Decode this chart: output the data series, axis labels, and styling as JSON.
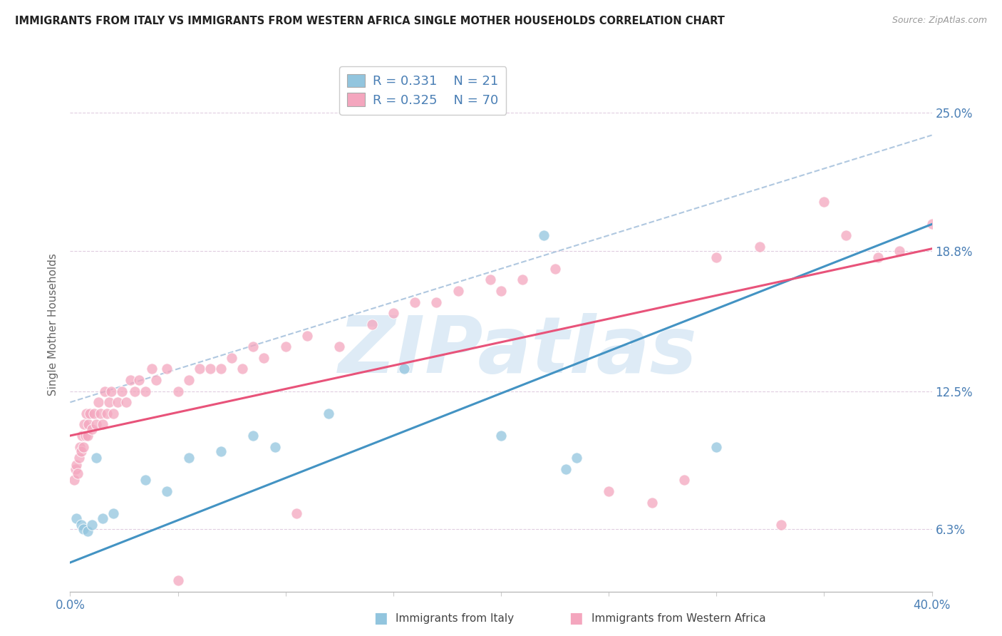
{
  "title": "IMMIGRANTS FROM ITALY VS IMMIGRANTS FROM WESTERN AFRICA SINGLE MOTHER HOUSEHOLDS CORRELATION CHART",
  "source": "Source: ZipAtlas.com",
  "ylabel": "Single Mother Households",
  "ytick_vals": [
    6.3,
    12.5,
    18.8,
    25.0
  ],
  "ytick_labels": [
    "6.3%",
    "12.5%",
    "18.8%",
    "25.0%"
  ],
  "xlim": [
    0.0,
    40.0
  ],
  "ylim": [
    3.5,
    27.5
  ],
  "legend_r1": "0.331",
  "legend_n1": "21",
  "legend_r2": "0.325",
  "legend_n2": "70",
  "color_italy": "#92c5de",
  "color_wa": "#f4a6be",
  "color_italy_line": "#4393c3",
  "color_wa_line": "#e8537a",
  "color_dash": "#b0c8e0",
  "watermark": "ZIPatlas",
  "watermark_color": "#c8dff0",
  "italy_x": [
    0.3,
    0.5,
    0.6,
    0.8,
    1.0,
    1.2,
    1.5,
    2.0,
    3.5,
    4.5,
    5.5,
    7.0,
    8.5,
    9.5,
    12.0,
    15.5,
    20.0,
    22.0,
    23.0,
    23.5,
    30.0
  ],
  "italy_y": [
    6.8,
    6.5,
    6.3,
    6.2,
    6.5,
    9.5,
    6.8,
    7.0,
    8.5,
    8.0,
    9.5,
    9.8,
    10.5,
    10.0,
    11.5,
    13.5,
    10.5,
    19.5,
    9.0,
    9.5,
    10.0
  ],
  "wa_x": [
    0.2,
    0.25,
    0.3,
    0.35,
    0.4,
    0.45,
    0.5,
    0.55,
    0.6,
    0.65,
    0.7,
    0.75,
    0.8,
    0.85,
    0.9,
    1.0,
    1.1,
    1.2,
    1.3,
    1.4,
    1.5,
    1.6,
    1.7,
    1.8,
    1.9,
    2.0,
    2.2,
    2.4,
    2.6,
    2.8,
    3.0,
    3.2,
    3.5,
    3.8,
    4.0,
    4.5,
    5.0,
    5.5,
    6.0,
    6.5,
    7.0,
    7.5,
    8.0,
    8.5,
    9.0,
    10.0,
    11.0,
    12.5,
    14.0,
    15.0,
    16.0,
    17.0,
    18.0,
    19.5,
    20.0,
    21.0,
    22.5,
    25.0,
    27.0,
    28.5,
    30.0,
    32.0,
    33.0,
    35.0,
    36.0,
    37.5,
    38.5,
    40.0,
    5.0,
    10.5
  ],
  "wa_y": [
    8.5,
    9.0,
    9.2,
    8.8,
    9.5,
    10.0,
    9.8,
    10.5,
    10.0,
    11.0,
    10.5,
    11.5,
    10.5,
    11.0,
    11.5,
    10.8,
    11.5,
    11.0,
    12.0,
    11.5,
    11.0,
    12.5,
    11.5,
    12.0,
    12.5,
    11.5,
    12.0,
    12.5,
    12.0,
    13.0,
    12.5,
    13.0,
    12.5,
    13.5,
    13.0,
    13.5,
    12.5,
    13.0,
    13.5,
    13.5,
    13.5,
    14.0,
    13.5,
    14.5,
    14.0,
    14.5,
    15.0,
    14.5,
    15.5,
    16.0,
    16.5,
    16.5,
    17.0,
    17.5,
    17.0,
    17.5,
    18.0,
    8.0,
    7.5,
    8.5,
    18.5,
    19.0,
    6.5,
    21.0,
    19.5,
    18.5,
    18.8,
    20.0,
    4.0,
    7.0
  ]
}
